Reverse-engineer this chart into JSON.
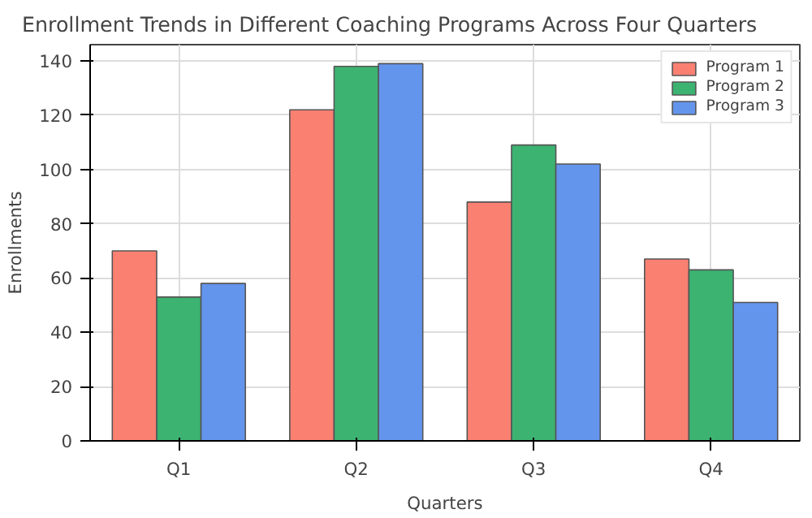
{
  "chart_data": {
    "type": "bar",
    "title": "Enrollment Trends in Different Coaching Programs Across Four Quarters",
    "xlabel": "Quarters",
    "ylabel": "Enrollments",
    "categories": [
      "Q1",
      "Q2",
      "Q3",
      "Q4"
    ],
    "series": [
      {
        "name": "Program 1",
        "color": "#fa8072",
        "values": [
          70,
          122,
          88,
          67
        ]
      },
      {
        "name": "Program 2",
        "color": "#3cb371",
        "values": [
          53,
          138,
          109,
          63
        ]
      },
      {
        "name": "Program 3",
        "color": "#6495ed",
        "values": [
          58,
          139,
          102,
          51
        ]
      }
    ],
    "ylim": [
      0,
      146
    ],
    "yticks": [
      0,
      20,
      40,
      60,
      80,
      100,
      120,
      140
    ],
    "grid": true,
    "legend": "top right"
  }
}
